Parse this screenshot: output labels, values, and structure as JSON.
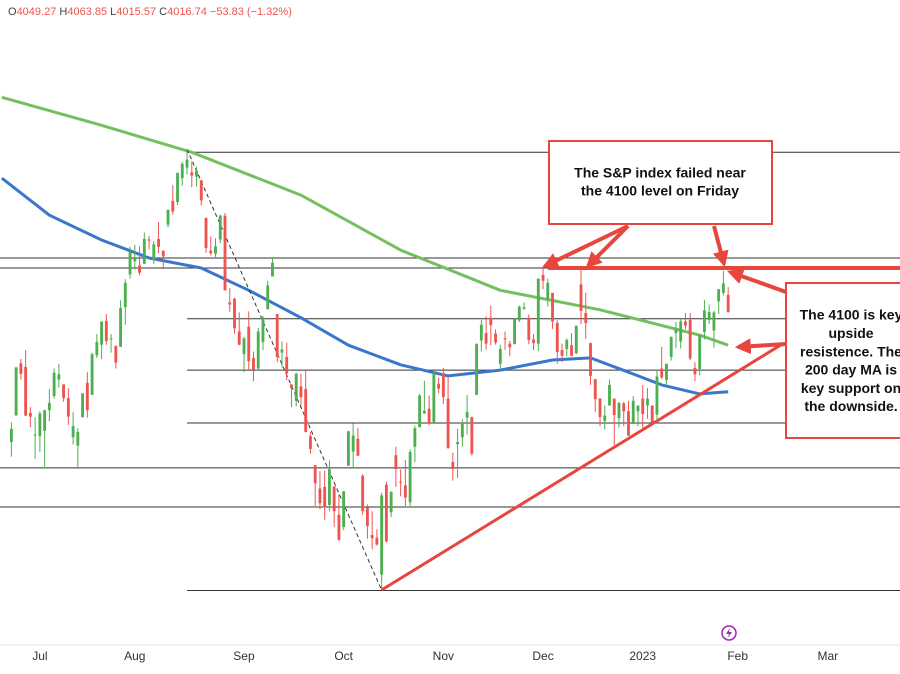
{
  "chart_data": {
    "type": "candlestick",
    "ohlc_labels": [
      "O",
      "H",
      "L",
      "C"
    ],
    "change": "−53.83",
    "change_pct": "(−1.32%)",
    "up_color": "#4caf50",
    "down_color": "#ef5350",
    "xlim": [
      -2.4,
      187.2
    ],
    "ylim": [
      3387,
      4607
    ],
    "xticks": [
      {
        "value": 6,
        "label": "Jul"
      },
      {
        "value": 26,
        "label": "Aug"
      },
      {
        "value": 49,
        "label": "Sep"
      },
      {
        "value": 70,
        "label": "Oct"
      },
      {
        "value": 91,
        "label": "Nov"
      },
      {
        "value": 112,
        "label": "Dec"
      },
      {
        "value": 133,
        "label": "2023"
      },
      {
        "value": 153,
        "label": "Feb"
      },
      {
        "value": 172,
        "label": "Mar"
      }
    ],
    "candles": [
      [
        3771,
        3808,
        3743,
        3796
      ],
      [
        3821,
        3913,
        3821,
        3912
      ],
      [
        3920,
        3928,
        3889,
        3900
      ],
      [
        3913,
        3945,
        3820,
        3821
      ],
      [
        3826,
        3837,
        3799,
        3819
      ],
      [
        3785,
        3818,
        3739,
        3785
      ],
      [
        3782,
        3829,
        3752,
        3825
      ],
      [
        3792,
        3832,
        3721,
        3831
      ],
      [
        3831,
        3871,
        3810,
        3845
      ],
      [
        3858,
        3910,
        3853,
        3902
      ],
      [
        3889,
        3919,
        3874,
        3899
      ],
      [
        3880,
        3880,
        3847,
        3854
      ],
      [
        3854,
        3873,
        3803,
        3819
      ],
      [
        3780,
        3828,
        3766,
        3801
      ],
      [
        3764,
        3797,
        3722,
        3790
      ],
      [
        3818,
        3863,
        3817,
        3863
      ],
      [
        3883,
        3903,
        3817,
        3831
      ],
      [
        3860,
        3940,
        3860,
        3937
      ],
      [
        3935,
        3975,
        3930,
        3960
      ],
      [
        3955,
        3999,
        3928,
        3999
      ],
      [
        4000,
        4013,
        3955,
        3962
      ],
      [
        3965,
        3975,
        3940,
        3967
      ],
      [
        3953,
        3953,
        3910,
        3921
      ],
      [
        3951,
        4039,
        3951,
        4024
      ],
      [
        4026,
        4079,
        3993,
        4072
      ],
      [
        4088,
        4140,
        4080,
        4130
      ],
      [
        4113,
        4144,
        4097,
        4119
      ],
      [
        4105,
        4141,
        4086,
        4091
      ],
      [
        4108,
        4167,
        4108,
        4155
      ],
      [
        4154,
        4161,
        4135,
        4152
      ],
      [
        4115,
        4151,
        4108,
        4145
      ],
      [
        4155,
        4187,
        4128,
        4140
      ],
      [
        4133,
        4133,
        4098,
        4122
      ],
      [
        4182,
        4211,
        4177,
        4210
      ],
      [
        4227,
        4257,
        4201,
        4207
      ],
      [
        4225,
        4280,
        4219,
        4280
      ],
      [
        4270,
        4301,
        4256,
        4297
      ],
      [
        4290,
        4325,
        4277,
        4305
      ],
      [
        4281,
        4302,
        4253,
        4275
      ],
      [
        4273,
        4292,
        4254,
        4284
      ],
      [
        4266,
        4266,
        4218,
        4228
      ],
      [
        4195,
        4195,
        4129,
        4138
      ],
      [
        4133,
        4160,
        4124,
        4128
      ],
      [
        4127,
        4156,
        4121,
        4141
      ],
      [
        4154,
        4201,
        4147,
        4199
      ],
      [
        4199,
        4204,
        4057,
        4058
      ],
      [
        4035,
        4062,
        4017,
        4031
      ],
      [
        4042,
        4044,
        3976,
        3986
      ],
      [
        3980,
        4016,
        3954,
        3955
      ],
      [
        3937,
        3970,
        3903,
        3967
      ],
      [
        3989,
        4018,
        3907,
        3924
      ],
      [
        3930,
        3942,
        3886,
        3908
      ],
      [
        3910,
        3987,
        3906,
        3980
      ],
      [
        3960,
        4010,
        3945,
        4006
      ],
      [
        4022,
        4076,
        4022,
        4067
      ],
      [
        4084,
        4119,
        4084,
        4110
      ],
      [
        4013,
        4013,
        3922,
        3932
      ],
      [
        3940,
        3961,
        3912,
        3946
      ],
      [
        3932,
        3959,
        3888,
        3901
      ],
      [
        3880,
        3880,
        3837,
        3873
      ],
      [
        3849,
        3902,
        3838,
        3900
      ],
      [
        3876,
        3900,
        3838,
        3856
      ],
      [
        3871,
        3907,
        3789,
        3790
      ],
      [
        3782,
        3790,
        3749,
        3758
      ],
      [
        3727,
        3727,
        3647,
        3693
      ],
      [
        3683,
        3716,
        3644,
        3655
      ],
      [
        3686,
        3717,
        3624,
        3647
      ],
      [
        3652,
        3736,
        3640,
        3719
      ],
      [
        3687,
        3687,
        3610,
        3640
      ],
      [
        3633,
        3672,
        3584,
        3586
      ],
      [
        3610,
        3678,
        3604,
        3678
      ],
      [
        3726,
        3792,
        3726,
        3791
      ],
      [
        3753,
        3806,
        3722,
        3783
      ],
      [
        3777,
        3798,
        3744,
        3745
      ],
      [
        3707,
        3710,
        3633,
        3640
      ],
      [
        3647,
        3653,
        3588,
        3612
      ],
      [
        3595,
        3640,
        3568,
        3589
      ],
      [
        3590,
        3606,
        3575,
        3577
      ],
      [
        3520,
        3675,
        3491,
        3670
      ],
      [
        3690,
        3696,
        3581,
        3583
      ],
      [
        3638,
        3677,
        3629,
        3677
      ],
      [
        3746,
        3762,
        3686,
        3720
      ],
      [
        3696,
        3719,
        3668,
        3695
      ],
      [
        3689,
        3737,
        3650,
        3666
      ],
      [
        3657,
        3757,
        3647,
        3752
      ],
      [
        3762,
        3802,
        3733,
        3797
      ],
      [
        3799,
        3862,
        3799,
        3859
      ],
      [
        3825,
        3887,
        3824,
        3830
      ],
      [
        3834,
        3859,
        3803,
        3807
      ],
      [
        3809,
        3905,
        3808,
        3901
      ],
      [
        3881,
        3893,
        3863,
        3872
      ],
      [
        3901,
        3911,
        3843,
        3856
      ],
      [
        3853,
        3894,
        3758,
        3760
      ],
      [
        3733,
        3751,
        3698,
        3720
      ],
      [
        3767,
        3796,
        3703,
        3771
      ],
      [
        3780,
        3814,
        3762,
        3807
      ],
      [
        3817,
        3860,
        3785,
        3828
      ],
      [
        3818,
        3819,
        3745,
        3749
      ],
      [
        3860,
        3958,
        3860,
        3956
      ],
      [
        3963,
        4002,
        3942,
        3993
      ],
      [
        3977,
        4009,
        3946,
        3957
      ],
      [
        4006,
        4029,
        3954,
        3992
      ],
      [
        3976,
        3984,
        3955,
        3959
      ],
      [
        3919,
        3955,
        3907,
        3947
      ],
      [
        3967,
        3980,
        3945,
        3965
      ],
      [
        3957,
        3962,
        3933,
        3950
      ],
      [
        3956,
        4004,
        3956,
        4004
      ],
      [
        4001,
        4029,
        3998,
        4027
      ],
      [
        4023,
        4035,
        4021,
        4026
      ],
      [
        4006,
        4012,
        3956,
        3964
      ],
      [
        3965,
        3975,
        3945,
        3958
      ],
      [
        3957,
        4080,
        3943,
        4080
      ],
      [
        4087,
        4101,
        4060,
        4076
      ],
      [
        4040,
        4080,
        4027,
        4072
      ],
      [
        4053,
        4053,
        3985,
        3999
      ],
      [
        3996,
        4001,
        3919,
        3941
      ],
      [
        3945,
        3957,
        3922,
        3934
      ],
      [
        3947,
        3967,
        3933,
        3964
      ],
      [
        3954,
        3977,
        3933,
        3934
      ],
      [
        3939,
        3991,
        3937,
        3991
      ],
      [
        4069,
        4100,
        3994,
        4019
      ],
      [
        4015,
        4053,
        3966,
        3996
      ],
      [
        3958,
        3959,
        3879,
        3896
      ],
      [
        3890,
        3890,
        3828,
        3852
      ],
      [
        3853,
        3854,
        3801,
        3818
      ],
      [
        3811,
        3840,
        3795,
        3821
      ],
      [
        3840,
        3889,
        3840,
        3879
      ],
      [
        3853,
        3853,
        3765,
        3822
      ],
      [
        3816,
        3846,
        3798,
        3845
      ],
      [
        3844,
        3847,
        3801,
        3829
      ],
      [
        3829,
        3849,
        3783,
        3783
      ],
      [
        3805,
        3858,
        3805,
        3849
      ],
      [
        3829,
        3840,
        3801,
        3840
      ],
      [
        3853,
        3879,
        3795,
        3824
      ],
      [
        3840,
        3873,
        3815,
        3853
      ],
      [
        3840,
        3840,
        3802,
        3808
      ],
      [
        3823,
        3907,
        3809,
        3895
      ],
      [
        3910,
        3951,
        3890,
        3893
      ],
      [
        3888,
        3919,
        3877,
        3919
      ],
      [
        3932,
        3970,
        3925,
        3970
      ],
      [
        3977,
        3998,
        3949,
        3983
      ],
      [
        3961,
        4003,
        3948,
        3999
      ],
      [
        3999,
        4015,
        3984,
        3991
      ],
      [
        4002,
        4015,
        3926,
        3929
      ],
      [
        3911,
        3922,
        3886,
        3899
      ],
      [
        3909,
        3973,
        3897,
        3973
      ],
      [
        3979,
        4040,
        3965,
        4020
      ],
      [
        4002,
        4031,
        3994,
        4017
      ],
      [
        3982,
        4019,
        3949,
        4016
      ],
      [
        4037,
        4060,
        4013,
        4060
      ],
      [
        4053,
        4095,
        4048,
        4071
      ],
      [
        4049.27,
        4063.85,
        4015.57,
        4016.74
      ]
    ],
    "hlines": [
      {
        "value": 4319,
        "from": 37
      },
      {
        "value": 4119
      },
      {
        "value": 4100
      },
      {
        "value": 4004,
        "from": 37
      },
      {
        "value": 3907,
        "from": 37
      },
      {
        "value": 3807,
        "from": 37
      },
      {
        "value": 3722
      },
      {
        "value": 3648
      },
      {
        "value": 3490,
        "from": 37
      }
    ],
    "lines": [
      {
        "color": "#74c060",
        "width": 3,
        "x": [
          -2,
          19,
          38,
          61,
          82,
          103,
          124,
          145,
          151
        ],
        "values": [
          4423,
          4370,
          4319,
          4238,
          4134,
          4058,
          4021,
          3973,
          3954
        ]
      },
      {
        "color": "#3a77cc",
        "width": 3,
        "x": [
          -2,
          8,
          19,
          29,
          40,
          50,
          61,
          71,
          82,
          92,
          103,
          114,
          122,
          130,
          137,
          145,
          151
        ],
        "values": [
          4270,
          4200,
          4153,
          4119,
          4100,
          4058,
          4006,
          3954,
          3917,
          3896,
          3907,
          3926,
          3930,
          3903,
          3879,
          3862,
          3866
        ]
      },
      {
        "color": "#e8453c",
        "width": 3,
        "x": [
          78,
          162
        ],
        "values": [
          3491,
          3954
        ]
      },
      {
        "color": "#333333",
        "width": 1,
        "dash": true,
        "x": [
          37,
          78
        ],
        "values": [
          4325,
          3491
        ]
      }
    ],
    "annotations": [
      {
        "lines": [
          "The S&P index failed near",
          "the 4100 level on Friday"
        ]
      },
      {
        "lines": [
          "The 4100 is key",
          "upside",
          "resistence. The",
          "200 day MA is",
          "key support on",
          "the downside."
        ]
      }
    ]
  }
}
